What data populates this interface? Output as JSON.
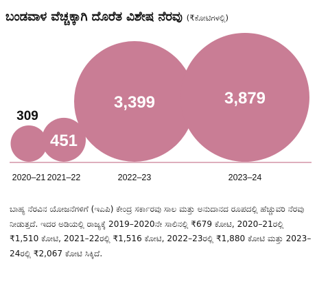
{
  "title": "ಬಂಡವಾಳ ವೆಚ್ಚಕ್ಕಾಗಿ ದೊರೆತ ವಿಶೇಷ ನೆರವು",
  "unit": "(₹ಕೋಟಿಗಳಲ್ಲಿ)",
  "colors": {
    "bubble": "#c97d95",
    "axis": "#c97d95"
  },
  "chart_data": {
    "type": "bubble",
    "categories": [
      "2020–21",
      "2021–22",
      "2022–23",
      "2023–24"
    ],
    "values": [
      309,
      451,
      3399,
      3879
    ],
    "value_labels": [
      "309",
      "451",
      "3,399",
      "3,879"
    ]
  },
  "caption": "ಬಾಹ್ಯ ನೆರವಿನ ಯೋಜನೆಗಳಿಗೆ (ಇಎಪಿ) ಕೇಂದ್ರ ಸರ್ಕಾರವು ಸಾಲ ಮತ್ತು ಅನುದಾನದ ರೂಪದಲ್ಲಿ ಹೆಚ್ಚುವರಿ ನೆರವು ನೀಡುತ್ತದೆ. ಇದರ ಅಡಿಯಲ್ಲಿ ರಾಜ್ಯಕ್ಕೆ 2019–2020ನೇ ಸಾಲಿನಲ್ಲಿ ₹679 ಕೋಟಿ, 2020–21ರಲ್ಲಿ ₹1,510 ಕೋಟಿ, 2021–22ರಲ್ಲಿ ₹1,516 ಕೋಟಿ, 2022–23ರಲ್ಲಿ ₹1,880 ಕೋಟಿ ಮತ್ತು 2023–24ರಲ್ಲಿ ₹2,067 ಕೋಟಿ ಸಿಕ್ಕಿದೆ."
}
